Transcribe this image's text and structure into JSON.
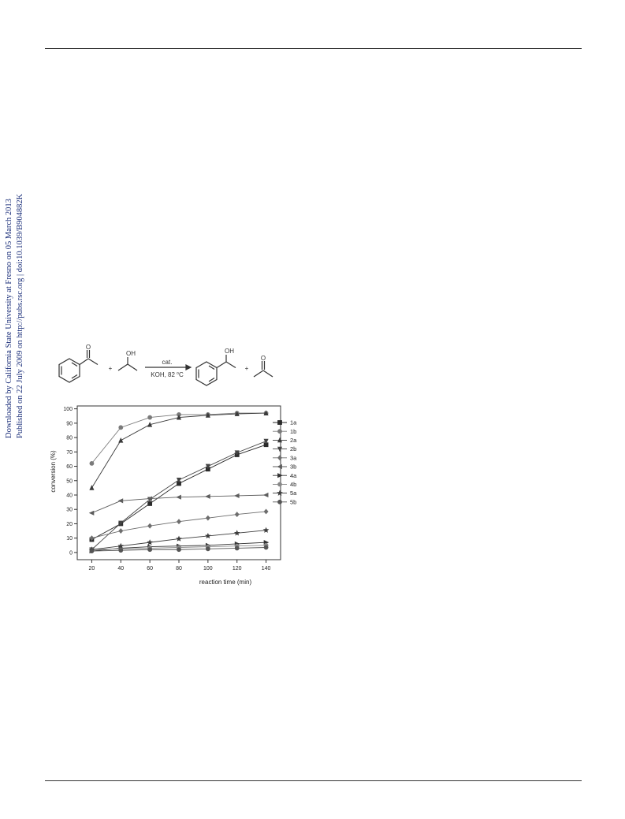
{
  "watermark": {
    "line1": "Downloaded by California State University at Fresno on 05 March 2013",
    "line2": "Published on 22 July 2009 on http://pubs.rsc.org | doi:10.1039/B904882K"
  },
  "scheme": {
    "plus": "+",
    "reagent_oh": "OH",
    "product_oh": "OH",
    "product_o": "O",
    "reactant_o": "O",
    "arrow_top": "cat.",
    "arrow_bottom_prefix": "KOH, 82 ",
    "degree": "o",
    "arrow_bottom_unit": "C"
  },
  "chart_data": {
    "type": "line",
    "xlabel": "reaction time (min)",
    "ylabel": "conversion (%)",
    "x": [
      20,
      40,
      60,
      80,
      100,
      120,
      140
    ],
    "xlim": [
      10,
      150
    ],
    "ylim": [
      -5,
      102
    ],
    "yticks": [
      0,
      10,
      20,
      30,
      40,
      50,
      60,
      70,
      80,
      90,
      100
    ],
    "grid": false,
    "legend_position": "right",
    "series": [
      {
        "name": "1a",
        "marker": "square",
        "color": "#2b2b2b",
        "values": [
          9,
          20,
          34,
          48,
          58,
          68,
          75
        ]
      },
      {
        "name": "1b",
        "marker": "circle",
        "color": "#7a7a7a",
        "values": [
          62,
          87,
          94,
          96,
          96,
          97,
          97
        ]
      },
      {
        "name": "2a",
        "marker": "triangle-up",
        "color": "#3a3a3a",
        "values": [
          45,
          78,
          89,
          94,
          95.5,
          96.5,
          97
        ]
      },
      {
        "name": "2b",
        "marker": "triangle-down",
        "color": "#444444",
        "values": [
          2,
          20.5,
          37,
          50.5,
          60,
          69.5,
          77.5
        ]
      },
      {
        "name": "3a",
        "marker": "diamond",
        "color": "#6d6d6d",
        "values": [
          10,
          15,
          18.5,
          21.5,
          24,
          26.5,
          28.5
        ]
      },
      {
        "name": "3b",
        "marker": "triangle-left",
        "color": "#5d5d5d",
        "values": [
          27.5,
          36,
          37.5,
          38.5,
          39,
          39.5,
          40
        ]
      },
      {
        "name": "4a",
        "marker": "triangle-right",
        "color": "#333333",
        "values": [
          1,
          3,
          4,
          4.5,
          5,
          6,
          7
        ]
      },
      {
        "name": "4b",
        "marker": "circle",
        "color": "#888888",
        "values": [
          2,
          2.5,
          3,
          3.5,
          4,
          4.5,
          5
        ]
      },
      {
        "name": "5a",
        "marker": "star",
        "color": "#3c3c3c",
        "values": [
          2,
          4.5,
          7,
          9.5,
          11.5,
          13.5,
          15.5
        ]
      },
      {
        "name": "5b",
        "marker": "circle",
        "color": "#555555",
        "values": [
          1,
          1.5,
          2,
          2,
          2.5,
          3,
          3.5
        ]
      }
    ]
  }
}
